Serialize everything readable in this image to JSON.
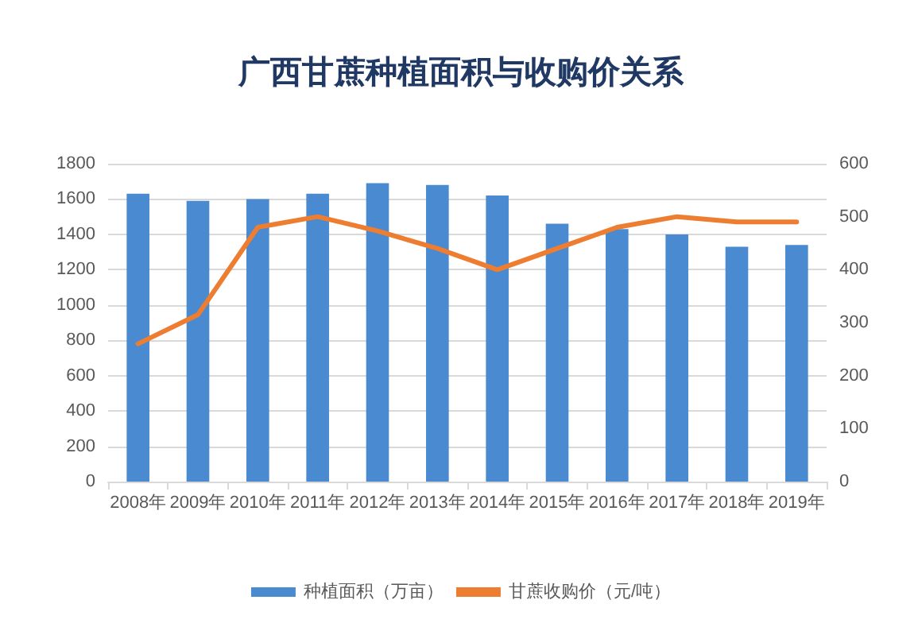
{
  "chart_data": {
    "type": "bar",
    "title": "广西甘蔗种植面积与收购价关系",
    "categories": [
      "2008年",
      "2009年",
      "2010年",
      "2011年",
      "2012年",
      "2013年",
      "2014年",
      "2015年",
      "2016年",
      "2017年",
      "2018年",
      "2019年"
    ],
    "series": [
      {
        "name": "种植面积（万亩）",
        "color": "#4a8ad0",
        "values": [
          1630,
          1590,
          1600,
          1630,
          1690,
          1680,
          1620,
          1460,
          1430,
          1400,
          1330,
          1340
        ]
      },
      {
        "name": "甘蔗收购价（元/吨）",
        "type": "line",
        "axis": "y2",
        "color": "#ed7d31",
        "values": [
          260,
          315,
          480,
          500,
          473,
          440,
          400,
          440,
          480,
          500,
          490,
          490
        ]
      }
    ],
    "ylim": [
      0,
      1800
    ],
    "yticks": [
      0,
      200,
      400,
      600,
      800,
      1000,
      1200,
      1400,
      1600,
      1800
    ],
    "y2lim": [
      0,
      600
    ],
    "y2ticks": [
      0,
      100,
      200,
      300,
      400,
      500,
      600
    ],
    "grid": "y",
    "legend": "bottom",
    "marker": "none",
    "line_style": "solid"
  }
}
